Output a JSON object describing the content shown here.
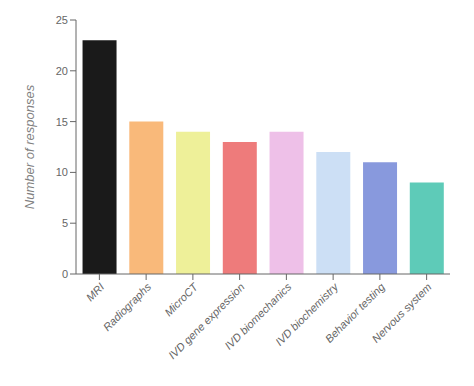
{
  "chart_data": {
    "type": "bar",
    "categories": [
      "MRI",
      "Radiographs",
      "MicroCT",
      "IVD gene expression",
      "IVD biomechanics",
      "IVD biochemistry",
      "Behavior testing",
      "Nervous system"
    ],
    "values": [
      23,
      15,
      14,
      13,
      14,
      12,
      11,
      9
    ],
    "colors": [
      "#1a1a1a",
      "#F9B97A",
      "#EEF099",
      "#EE7B7B",
      "#EEC0E8",
      "#CCDFF5",
      "#8899DD",
      "#5ECBB8"
    ],
    "ylabel": "Number of responses",
    "ylim": [
      0,
      25
    ],
    "yticks": [
      0,
      5,
      10,
      15,
      20,
      25
    ],
    "grid": false
  }
}
